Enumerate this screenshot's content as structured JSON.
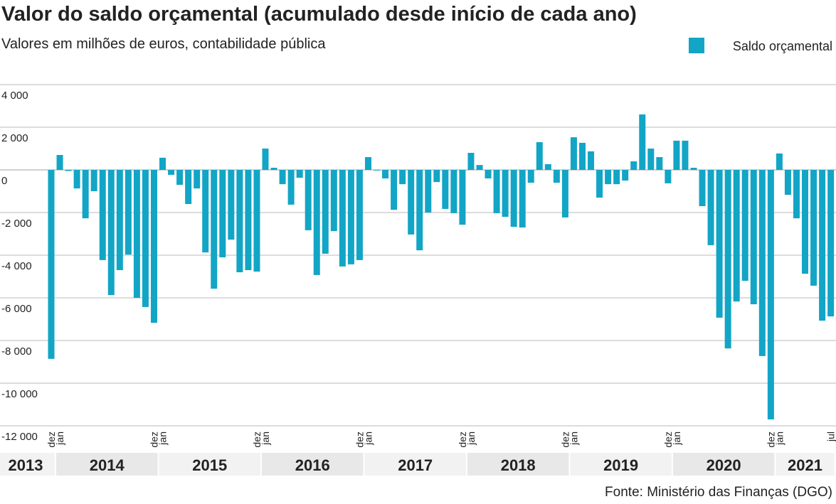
{
  "chart_data": {
    "type": "bar",
    "title": "Valor do saldo orçamental (acumulado desde início de cada ano)",
    "subtitle": "Valores em milhões de euros, contabilidade pública",
    "source": "Fonte: Ministério das Finanças (DGO)",
    "legend_position": "top-right",
    "grid": true,
    "categories": [
      "dez",
      "jan",
      null,
      null,
      null,
      null,
      null,
      null,
      null,
      null,
      null,
      null,
      "dez",
      "jan",
      null,
      null,
      null,
      null,
      null,
      null,
      null,
      null,
      null,
      null,
      "dez",
      "jan",
      null,
      null,
      null,
      null,
      null,
      null,
      null,
      null,
      null,
      null,
      "dez",
      "jan",
      null,
      null,
      null,
      null,
      null,
      null,
      null,
      null,
      null,
      null,
      "dez",
      "jan",
      null,
      null,
      null,
      null,
      null,
      null,
      null,
      null,
      null,
      null,
      "dez",
      "jan",
      null,
      null,
      null,
      null,
      null,
      null,
      null,
      null,
      null,
      null,
      "dez",
      "jan",
      null,
      null,
      null,
      null,
      null,
      null,
      null,
      null,
      null,
      null,
      "dez",
      "jan",
      null,
      null,
      null,
      null,
      null,
      "jul"
    ],
    "years": [
      "2013",
      "2014",
      "2015",
      "2016",
      "2017",
      "2018",
      "2019",
      "2020",
      "2021"
    ],
    "series": [
      {
        "name": "Saldo orçamental",
        "color": "#12a5c6",
        "values": [
          -8860,
          700,
          -50,
          -870,
          -2270,
          -1000,
          -4230,
          -5870,
          -4700,
          -3970,
          -6000,
          -6430,
          -7170,
          570,
          -230,
          -700,
          -1600,
          -870,
          -3870,
          -5570,
          -4100,
          -3270,
          -4800,
          -4700,
          -4770,
          1000,
          100,
          -670,
          -1630,
          -370,
          -2830,
          -4930,
          -3930,
          -2870,
          -4530,
          -4430,
          -4230,
          600,
          -30,
          -400,
          -1870,
          -670,
          -3030,
          -3770,
          -2000,
          -570,
          -1830,
          -2030,
          -2570,
          800,
          230,
          -400,
          -2030,
          -2200,
          -2670,
          -2700,
          -600,
          1300,
          270,
          -600,
          -2230,
          1530,
          1270,
          870,
          -1300,
          -670,
          -670,
          -500,
          400,
          2600,
          1000,
          600,
          -630,
          1370,
          1370,
          100,
          -1700,
          -3530,
          -6930,
          -8370,
          -6170,
          -5200,
          -6300,
          -8730,
          -11700,
          770,
          -1170,
          -2270,
          -4870,
          -5430,
          -7070,
          -6870
        ]
      }
    ],
    "ylim": [
      -12000,
      4000
    ],
    "yticks": [
      {
        "value": 4000,
        "label": "4 000"
      },
      {
        "value": 2000,
        "label": "2 000"
      },
      0,
      {
        "value": -2000,
        "label": "-2 000"
      },
      {
        "value": -4000,
        "label": "-4 000"
      },
      {
        "value": -6000,
        "label": "-6 000"
      },
      {
        "value": -8000,
        "label": "-8 000"
      },
      {
        "value": -10000,
        "label": "-10 000"
      },
      {
        "value": -12000,
        "label": "-12 000"
      }
    ]
  }
}
